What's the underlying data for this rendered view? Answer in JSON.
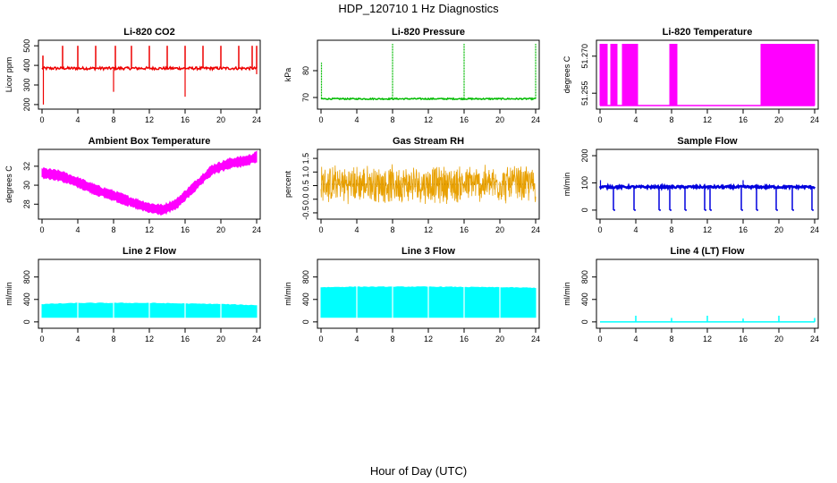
{
  "page": {
    "title": "HDP_120710  1 Hz Diagnostics",
    "xlabel": "Hour of Day (UTC)"
  },
  "chart_data": [
    {
      "type": "line",
      "title": "Li-820 CO2",
      "ylabel": "Licor ppm",
      "xlim": [
        0,
        24
      ],
      "ylim": [
        195,
        510
      ],
      "xticks": [
        0,
        4,
        8,
        12,
        16,
        20,
        24
      ],
      "xtick_labels": [
        "0",
        "4",
        "8",
        "12",
        "16",
        "20",
        "24"
      ],
      "yticks": [
        200,
        300,
        400,
        500
      ],
      "ytick_labels": [
        "200",
        "300",
        "400",
        "500"
      ],
      "color": "#ee0000",
      "pattern": "co2",
      "series": [
        {
          "baseline": 385,
          "spikes_up": [
            {
              "x": 0.1,
              "y": 450
            },
            {
              "x": 2.3,
              "y": 500
            },
            {
              "x": 4.0,
              "y": 500
            },
            {
              "x": 6.0,
              "y": 500
            },
            {
              "x": 8.2,
              "y": 500
            },
            {
              "x": 10.0,
              "y": 500
            },
            {
              "x": 12.0,
              "y": 500
            },
            {
              "x": 14.0,
              "y": 500
            },
            {
              "x": 16.0,
              "y": 500
            },
            {
              "x": 18.0,
              "y": 500
            },
            {
              "x": 20.0,
              "y": 500
            },
            {
              "x": 22.0,
              "y": 500
            },
            {
              "x": 23.5,
              "y": 500
            },
            {
              "x": 24.0,
              "y": 500
            }
          ],
          "spikes_down": [
            {
              "x": 0.15,
              "y": 200
            },
            {
              "x": 8.0,
              "y": 265
            },
            {
              "x": 16.0,
              "y": 240
            },
            {
              "x": 24.0,
              "y": 355
            }
          ]
        }
      ]
    },
    {
      "type": "line",
      "title": "Li-820 Pressure",
      "ylabel": "kPa",
      "xlim": [
        0,
        24
      ],
      "ylim": [
        67,
        90
      ],
      "xticks": [
        0,
        4,
        8,
        12,
        16,
        20,
        24
      ],
      "xtick_labels": [
        "0",
        "4",
        "8",
        "12",
        "16",
        "20",
        "24"
      ],
      "yticks": [
        70,
        80
      ],
      "ytick_labels": [
        "70",
        "80"
      ],
      "color": "#00bb00",
      "pattern": "pressure",
      "series": [
        {
          "baseline": 69.5,
          "spikes_up": [
            {
              "x": 0.05,
              "y": 83
            },
            {
              "x": 8.0,
              "y": 90
            },
            {
              "x": 16.0,
              "y": 90
            },
            {
              "x": 24.0,
              "y": 90
            }
          ]
        }
      ]
    },
    {
      "type": "line",
      "title": "Li-820 Temperature",
      "ylabel": "degrees C",
      "xlim": [
        0,
        24
      ],
      "ylim": [
        51.25,
        51.275
      ],
      "xticks": [
        0,
        4,
        8,
        12,
        16,
        20,
        24
      ],
      "xtick_labels": [
        "0",
        "4",
        "8",
        "12",
        "16",
        "20",
        "24"
      ],
      "yticks": [
        51.255,
        51.27
      ],
      "ytick_labels": [
        "51.255",
        "51.270"
      ],
      "color": "#ff00ff",
      "pattern": "temp820",
      "series": [
        {
          "low": 51.25,
          "high": 51.275,
          "dense_ranges": [
            [
              0,
              0.8
            ],
            [
              1.2,
              1.9
            ],
            [
              2.5,
              4.2
            ],
            [
              7.8,
              8.6
            ],
            [
              18.0,
              24.0
            ]
          ]
        }
      ]
    },
    {
      "type": "line",
      "title": "Ambient Box Temperature",
      "ylabel": "degrees C",
      "xlim": [
        0,
        24
      ],
      "ylim": [
        26.8,
        33.4
      ],
      "xticks": [
        0,
        4,
        8,
        12,
        16,
        20,
        24
      ],
      "xtick_labels": [
        "0",
        "4",
        "8",
        "12",
        "16",
        "20",
        "24"
      ],
      "yticks": [
        28,
        30,
        32
      ],
      "ytick_labels": [
        "28",
        "30",
        "32"
      ],
      "color": "#ff00ff",
      "pattern": "band",
      "series": [
        {
          "x": [
            0,
            2,
            4,
            6,
            8,
            10,
            12,
            13.5,
            15,
            17,
            19,
            21,
            23,
            24
          ],
          "y": [
            31.3,
            31.0,
            30.3,
            29.5,
            28.9,
            28.2,
            27.6,
            27.4,
            28.0,
            29.8,
            31.6,
            32.3,
            32.6,
            33.0
          ],
          "halfwidth": 0.45
        }
      ]
    },
    {
      "type": "line",
      "title": "Gas Stream RH",
      "ylabel": "percent",
      "xlim": [
        0,
        24
      ],
      "ylim": [
        -0.6,
        1.7
      ],
      "xticks": [
        0,
        4,
        8,
        12,
        16,
        20,
        24
      ],
      "xtick_labels": [
        "0",
        "4",
        "8",
        "12",
        "16",
        "20",
        "24"
      ],
      "yticks": [
        -0.5,
        0.0,
        0.5,
        1.0,
        1.5
      ],
      "ytick_labels": [
        "-0.5",
        "0.0",
        "0.5",
        "1.0",
        "1.5"
      ],
      "color": "#e8a000",
      "pattern": "noise",
      "series": [
        {
          "center": 0.55,
          "amplitude": 0.75
        }
      ]
    },
    {
      "type": "line",
      "title": "Sample Flow",
      "ylabel": "ml/min",
      "xlim": [
        0,
        24
      ],
      "ylim": [
        -20,
        210
      ],
      "xticks": [
        0,
        4,
        8,
        12,
        16,
        20,
        24
      ],
      "xtick_labels": [
        "0",
        "4",
        "8",
        "12",
        "16",
        "20",
        "24"
      ],
      "yticks": [
        0,
        100,
        200
      ],
      "ytick_labels": [
        "0",
        "100",
        "200"
      ],
      "color": "#0000dd",
      "pattern": "flow",
      "series": [
        {
          "baseline": 85,
          "dips": [
            1.5,
            3.8,
            6.6,
            7.8,
            9.5,
            11.7,
            12.3,
            15.8,
            17.5,
            19.7,
            21.5,
            23.7
          ]
        }
      ]
    },
    {
      "type": "area",
      "title": "Line 2 Flow",
      "ylabel": "ml/min",
      "xlim": [
        0,
        24
      ],
      "ylim": [
        -50,
        1050
      ],
      "xticks": [
        0,
        4,
        8,
        12,
        16,
        20,
        24
      ],
      "xtick_labels": [
        "0",
        "4",
        "8",
        "12",
        "16",
        "20",
        "24"
      ],
      "yticks": [
        0,
        400,
        800
      ],
      "ytick_labels": [
        "0",
        "400",
        "800"
      ],
      "color": "#00ffff",
      "pattern": "block",
      "series": [
        {
          "x": [
            0,
            4,
            8,
            12,
            16,
            20,
            24
          ],
          "top": [
            310,
            330,
            330,
            330,
            320,
            310,
            290
          ],
          "bottom": 80,
          "gaps": [
            4,
            8,
            12,
            16,
            20
          ]
        }
      ]
    },
    {
      "type": "area",
      "title": "Line 3 Flow",
      "ylabel": "ml/min",
      "xlim": [
        0,
        24
      ],
      "ylim": [
        -50,
        1050
      ],
      "xticks": [
        0,
        4,
        8,
        12,
        16,
        20,
        24
      ],
      "xtick_labels": [
        "0",
        "4",
        "8",
        "12",
        "16",
        "20",
        "24"
      ],
      "yticks": [
        0,
        400,
        800
      ],
      "ytick_labels": [
        "0",
        "400",
        "800"
      ],
      "color": "#00ffff",
      "pattern": "block",
      "series": [
        {
          "x": [
            0,
            4,
            8,
            12,
            16,
            20,
            24
          ],
          "top": [
            610,
            620,
            620,
            620,
            615,
            610,
            600
          ],
          "bottom": 80,
          "gaps": [
            4,
            8,
            12,
            16,
            20
          ]
        }
      ]
    },
    {
      "type": "line",
      "title": "Line 4 (LT) Flow",
      "ylabel": "ml/min",
      "xlim": [
        0,
        24
      ],
      "ylim": [
        -50,
        1050
      ],
      "xticks": [
        0,
        4,
        8,
        12,
        16,
        20,
        24
      ],
      "xtick_labels": [
        "0",
        "4",
        "8",
        "12",
        "16",
        "20",
        "24"
      ],
      "yticks": [
        0,
        400,
        800
      ],
      "ytick_labels": [
        "0",
        "400",
        "800"
      ],
      "color": "#00ffff",
      "pattern": "lt",
      "series": [
        {
          "baseline": 0,
          "spikes_up": [
            {
              "x": 4.0,
              "y": 110
            },
            {
              "x": 8.0,
              "y": 70
            },
            {
              "x": 12.0,
              "y": 110
            },
            {
              "x": 16.0,
              "y": 60
            },
            {
              "x": 20.0,
              "y": 110
            },
            {
              "x": 24.0,
              "y": 70
            }
          ]
        }
      ]
    }
  ]
}
